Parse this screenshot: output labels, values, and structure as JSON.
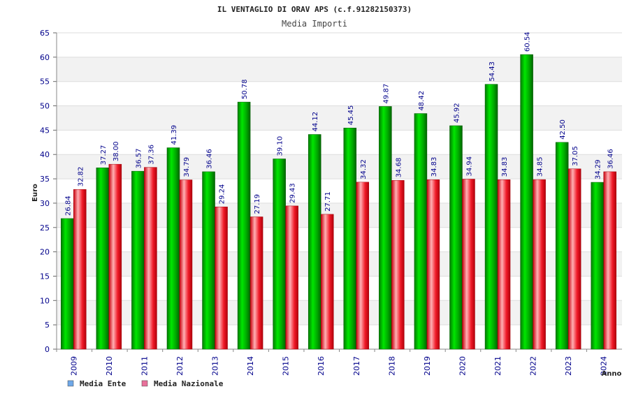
{
  "chart_data": {
    "type": "bar",
    "title": "IL VENTAGLIO DI ORAV APS (c.f.91282150373)",
    "subtitle": "Media Importi",
    "xlabel": "Anno",
    "ylabel": "Euro",
    "ylim": [
      0,
      65
    ],
    "ytick_step": 5,
    "grid": true,
    "legend_position": "bottom-left",
    "categories": [
      "2009",
      "2010",
      "2011",
      "2012",
      "2013",
      "2014",
      "2015",
      "2016",
      "2017",
      "2018",
      "2019",
      "2020",
      "2021",
      "2022",
      "2023",
      "2024"
    ],
    "series": [
      {
        "name": "Media Ente",
        "color": "#00b400",
        "legend_color": "#6fa8e8",
        "values": [
          26.84,
          37.27,
          36.57,
          41.39,
          36.46,
          50.78,
          39.1,
          44.12,
          45.45,
          49.87,
          48.42,
          45.92,
          54.43,
          60.54,
          42.5,
          34.29
        ],
        "labels": [
          "26.84",
          "37.27",
          "36.57",
          "41.39",
          "36.46",
          "50.78",
          "39.10",
          "44.12",
          "45.45",
          "49.87",
          "48.42",
          "45.92",
          "54.43",
          "60.54",
          "42.50",
          "34.29"
        ]
      },
      {
        "name": "Media Nazionale",
        "color": "#e8101e",
        "legend_color": "#e8709a",
        "values": [
          32.82,
          38.0,
          37.36,
          34.79,
          29.24,
          27.19,
          29.43,
          27.71,
          34.32,
          34.68,
          34.83,
          34.94,
          34.83,
          34.85,
          37.05,
          36.46
        ],
        "labels": [
          "32.82",
          "38.00",
          "37.36",
          "34.79",
          "29.24",
          "27.19",
          "29.43",
          "27.71",
          "34.32",
          "34.68",
          "34.83",
          "34.94",
          "34.83",
          "34.85",
          "37.05",
          "36.46"
        ]
      }
    ]
  }
}
